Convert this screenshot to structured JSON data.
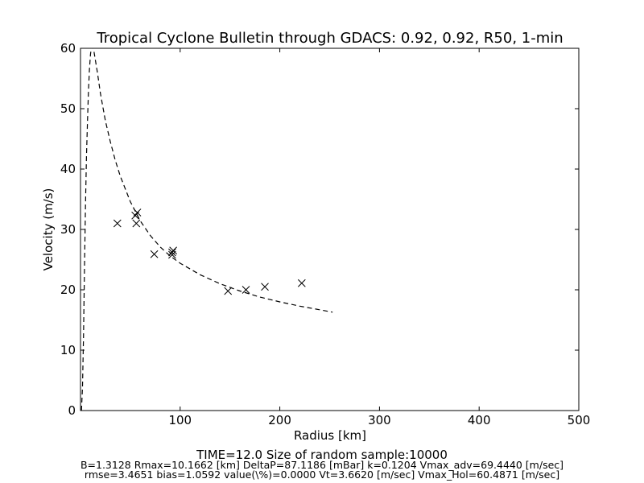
{
  "chart_data": {
    "type": "scatter",
    "title": "Tropical Cyclone Bulletin through GDACS: 0.92, 0.92, R50, 1-min",
    "xlabel": "Radius [km]",
    "ylabel": "Velocity (m/s)",
    "xlim": [
      0,
      500
    ],
    "ylim": [
      0,
      60
    ],
    "xticks": [
      100,
      200,
      300,
      400,
      500
    ],
    "yticks": [
      0,
      10,
      20,
      30,
      40,
      50,
      60
    ],
    "grid": false,
    "points": [
      {
        "x": 37,
        "y": 31.0
      },
      {
        "x": 55,
        "y": 32.3
      },
      {
        "x": 56,
        "y": 31.0
      },
      {
        "x": 57,
        "y": 32.8
      },
      {
        "x": 74,
        "y": 25.9
      },
      {
        "x": 92,
        "y": 25.8
      },
      {
        "x": 92,
        "y": 26.2
      },
      {
        "x": 93,
        "y": 26.5
      },
      {
        "x": 148,
        "y": 19.8
      },
      {
        "x": 166,
        "y": 20.0
      },
      {
        "x": 185,
        "y": 20.5
      },
      {
        "x": 222,
        "y": 21.1
      }
    ],
    "fit_curve": {
      "style": "dashed",
      "points": [
        [
          1,
          0
        ],
        [
          2,
          4
        ],
        [
          3,
          12
        ],
        [
          4,
          24
        ],
        [
          5,
          34
        ],
        [
          6,
          42
        ],
        [
          7,
          48
        ],
        [
          8,
          53
        ],
        [
          9,
          56.5
        ],
        [
          10,
          59
        ],
        [
          11,
          60.2
        ],
        [
          12,
          61
        ],
        [
          14,
          59
        ],
        [
          17,
          56
        ],
        [
          20,
          52.5
        ],
        [
          25,
          48
        ],
        [
          30,
          44.5
        ],
        [
          35,
          41.4
        ],
        [
          40,
          38.8
        ],
        [
          50,
          34.6
        ],
        [
          60,
          31.4
        ],
        [
          70,
          29.0
        ],
        [
          80,
          27.1
        ],
        [
          90,
          25.6
        ],
        [
          100,
          24.4
        ],
        [
          120,
          22.5
        ],
        [
          140,
          21.0
        ],
        [
          160,
          19.8
        ],
        [
          180,
          18.8
        ],
        [
          200,
          18.0
        ],
        [
          220,
          17.3
        ],
        [
          240,
          16.7
        ],
        [
          253,
          16.3
        ]
      ]
    }
  },
  "footer": {
    "line1": "TIME=12.0      Size of random sample:10000",
    "line2": "B=1.3128 Rmax=10.1662 [km]  DeltaP=87.1186 [mBar] k=0.1204 Vmax_adv=69.4440 [m/sec]",
    "line3": "rmse=3.4651 bias=1.0592 value(\\%)=0.0000 Vt=3.6620 [m/sec] Vmax_Hol=60.4871 [m/sec]"
  }
}
